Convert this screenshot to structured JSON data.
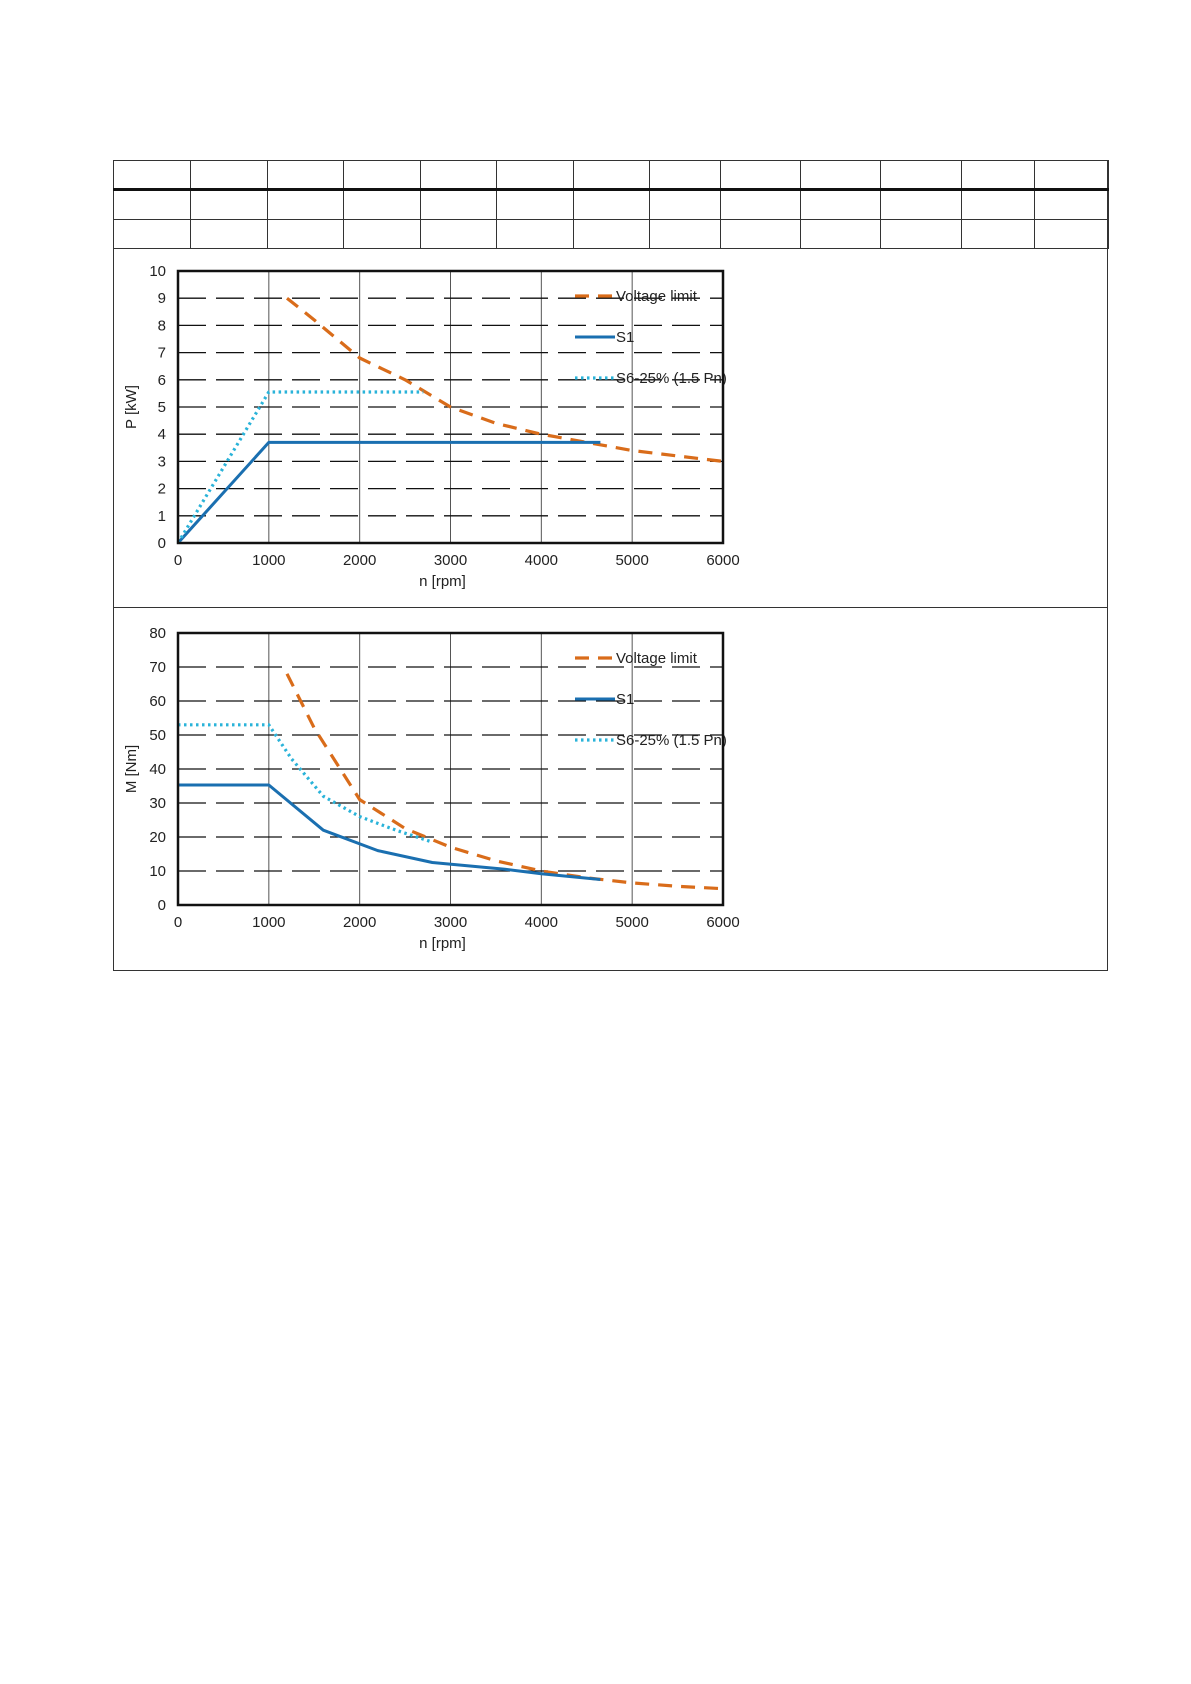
{
  "table": {
    "columns": 13,
    "rows": 3
  },
  "chart_data": [
    {
      "type": "line",
      "title": "",
      "xlabel": "n [rpm]",
      "ylabel": "P [kW]",
      "xlim": [
        0,
        6000
      ],
      "ylim": [
        0,
        10
      ],
      "xticks": [
        0,
        1000,
        2000,
        3000,
        4000,
        5000,
        6000
      ],
      "yticks": [
        0,
        1,
        2,
        3,
        4,
        5,
        6,
        7,
        8,
        9,
        10
      ],
      "grid": true,
      "legend_position": "top-right",
      "series": [
        {
          "name": "Voltage limit",
          "color": "#d96c1a",
          "style": "dashed",
          "x": [
            1200,
            1500,
            2000,
            2500,
            3000,
            3500,
            4000,
            4500,
            5000,
            5500,
            6000
          ],
          "y": [
            9.0,
            8.2,
            6.8,
            6.0,
            5.0,
            4.4,
            4.0,
            3.7,
            3.4,
            3.2,
            3.0
          ]
        },
        {
          "name": "S1",
          "color": "#1a6fb0",
          "style": "solid",
          "x": [
            0,
            1000,
            4650
          ],
          "y": [
            0,
            3.7,
            3.7
          ]
        },
        {
          "name": "S6-25% (1.5 Pn)",
          "color": "#2ab3d9",
          "style": "dotted",
          "x": [
            0,
            1000,
            2700
          ],
          "y": [
            0,
            5.55,
            5.55
          ]
        }
      ]
    },
    {
      "type": "line",
      "title": "",
      "xlabel": "n [rpm]",
      "ylabel": "M [Nm]",
      "xlim": [
        0,
        6000
      ],
      "ylim": [
        0,
        80
      ],
      "xticks": [
        0,
        1000,
        2000,
        3000,
        4000,
        5000,
        6000
      ],
      "yticks": [
        0,
        10,
        20,
        30,
        40,
        50,
        60,
        70,
        80
      ],
      "grid": true,
      "legend_position": "top-right",
      "series": [
        {
          "name": "Voltage limit",
          "color": "#d96c1a",
          "style": "dashed",
          "x": [
            1200,
            1500,
            2000,
            2500,
            3000,
            3500,
            4000,
            4500,
            5000,
            5500,
            6000
          ],
          "y": [
            68,
            52,
            31,
            22.5,
            17,
            13,
            10,
            8,
            6.5,
            5.5,
            4.8
          ]
        },
        {
          "name": "S1",
          "color": "#1a6fb0",
          "style": "solid",
          "x": [
            0,
            1000,
            1600,
            2200,
            2800,
            3600,
            4000,
            4650
          ],
          "y": [
            35.3,
            35.3,
            22,
            16,
            12.5,
            10.5,
            9.2,
            7.5
          ]
        },
        {
          "name": "S6-25% (1.5 Pn)",
          "color": "#2ab3d9",
          "style": "dotted",
          "x": [
            0,
            1000,
            1250,
            1600,
            2000,
            2400,
            2800
          ],
          "y": [
            53,
            53,
            43,
            32,
            26,
            22,
            18.5
          ]
        }
      ]
    }
  ]
}
